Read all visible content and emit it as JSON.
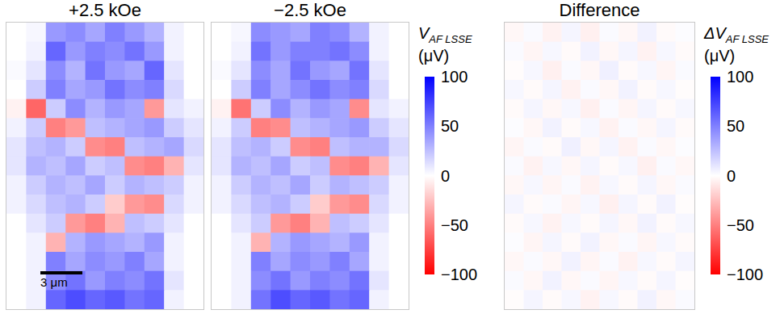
{
  "chart_data": [
    {
      "type": "heatmap",
      "title": "+2.5 kOe",
      "tick_labels": false,
      "annotation": "3 μm",
      "cells": [
        [
          0,
          3,
          40,
          45,
          35,
          50,
          40,
          30,
          5,
          0
        ],
        [
          0,
          5,
          60,
          40,
          50,
          45,
          55,
          40,
          5,
          0
        ],
        [
          2,
          10,
          45,
          30,
          55,
          40,
          35,
          60,
          10,
          0
        ],
        [
          0,
          20,
          50,
          35,
          40,
          55,
          45,
          50,
          15,
          0
        ],
        [
          -5,
          -60,
          20,
          45,
          30,
          40,
          35,
          -40,
          10,
          5
        ],
        [
          5,
          20,
          -50,
          -40,
          25,
          30,
          35,
          40,
          20,
          10
        ],
        [
          10,
          25,
          30,
          20,
          -45,
          -50,
          25,
          30,
          35,
          15
        ],
        [
          10,
          30,
          25,
          35,
          20,
          25,
          -45,
          -50,
          -30,
          10
        ],
        [
          5,
          20,
          30,
          25,
          35,
          20,
          30,
          25,
          20,
          5
        ],
        [
          5,
          15,
          25,
          30,
          20,
          -20,
          -40,
          -45,
          15,
          5
        ],
        [
          0,
          10,
          20,
          -40,
          -50,
          -30,
          25,
          20,
          10,
          0
        ],
        [
          0,
          5,
          -30,
          30,
          40,
          35,
          30,
          40,
          5,
          0
        ],
        [
          0,
          5,
          50,
          35,
          45,
          40,
          50,
          35,
          5,
          0
        ],
        [
          0,
          5,
          45,
          55,
          40,
          50,
          45,
          55,
          10,
          0
        ],
        [
          0,
          5,
          60,
          70,
          60,
          65,
          55,
          60,
          5,
          0
        ]
      ]
    },
    {
      "type": "heatmap",
      "title": "−2.5 kOe",
      "tick_labels": false,
      "cells": [
        [
          0,
          3,
          45,
          40,
          35,
          50,
          45,
          30,
          5,
          0
        ],
        [
          0,
          5,
          55,
          40,
          50,
          50,
          55,
          45,
          5,
          0
        ],
        [
          2,
          10,
          45,
          35,
          55,
          40,
          35,
          55,
          10,
          0
        ],
        [
          0,
          20,
          50,
          35,
          45,
          55,
          45,
          50,
          15,
          0
        ],
        [
          -5,
          -55,
          20,
          45,
          30,
          40,
          35,
          -45,
          10,
          5
        ],
        [
          5,
          20,
          -50,
          -45,
          25,
          30,
          35,
          40,
          20,
          10
        ],
        [
          10,
          25,
          30,
          20,
          -45,
          -50,
          25,
          30,
          30,
          15
        ],
        [
          10,
          30,
          25,
          35,
          20,
          25,
          -45,
          -50,
          -30,
          10
        ],
        [
          5,
          20,
          30,
          25,
          35,
          20,
          30,
          25,
          20,
          5
        ],
        [
          5,
          15,
          25,
          30,
          20,
          -20,
          -40,
          -45,
          15,
          5
        ],
        [
          0,
          10,
          20,
          -40,
          -50,
          -30,
          25,
          20,
          10,
          0
        ],
        [
          0,
          5,
          -30,
          30,
          40,
          35,
          30,
          40,
          5,
          0
        ],
        [
          0,
          5,
          50,
          35,
          45,
          40,
          50,
          35,
          5,
          0
        ],
        [
          0,
          5,
          45,
          55,
          40,
          50,
          45,
          55,
          10,
          0
        ],
        [
          0,
          5,
          55,
          70,
          60,
          65,
          55,
          60,
          5,
          0
        ]
      ],
      "colorbar": {
        "label": "V",
        "label_subscript": "AF LSSE",
        "unit": "(μV)",
        "range": [
          -100,
          100
        ],
        "ticks": [
          100,
          50,
          0,
          {
            "value": -50,
            "label": "−50"
          },
          {
            "value": -100,
            "label": "−100"
          }
        ]
      }
    },
    {
      "type": "heatmap",
      "title": "Difference",
      "tick_labels": false,
      "cells": [
        [
          -3,
          2,
          -5,
          4,
          -6,
          2,
          -3,
          5,
          -2,
          1
        ],
        [
          2,
          -4,
          3,
          -2,
          5,
          -3,
          4,
          -5,
          3,
          -2
        ],
        [
          -1,
          3,
          -6,
          2,
          -3,
          6,
          -2,
          3,
          -4,
          2
        ],
        [
          3,
          -2,
          4,
          -5,
          2,
          -3,
          5,
          -2,
          3,
          -1
        ],
        [
          -2,
          4,
          -3,
          3,
          -6,
          2,
          -4,
          4,
          -2,
          3
        ],
        [
          1,
          -3,
          5,
          -2,
          3,
          -5,
          2,
          -3,
          4,
          -2
        ],
        [
          -4,
          2,
          -2,
          6,
          -3,
          4,
          -5,
          2,
          -3,
          1
        ],
        [
          2,
          -5,
          3,
          -3,
          4,
          -2,
          3,
          -6,
          2,
          -3
        ],
        [
          -3,
          3,
          -4,
          2,
          -5,
          3,
          -2,
          4,
          -3,
          2
        ],
        [
          4,
          -2,
          2,
          -4,
          3,
          -6,
          4,
          -2,
          5,
          -1
        ],
        [
          -2,
          3,
          -5,
          3,
          -2,
          4,
          -3,
          5,
          -2,
          3
        ],
        [
          1,
          -4,
          4,
          -2,
          5,
          -3,
          2,
          -4,
          3,
          -2
        ],
        [
          -3,
          2,
          -3,
          5,
          -4,
          2,
          -5,
          3,
          -2,
          4
        ],
        [
          2,
          -3,
          5,
          -3,
          2,
          -4,
          3,
          -2,
          4,
          -1
        ],
        [
          -1,
          4,
          -2,
          3,
          -5,
          3,
          -2,
          5,
          -3,
          2
        ]
      ],
      "colorbar": {
        "label": "ΔV",
        "label_subscript": "AF LSSE",
        "unit": "(μV)",
        "range": [
          -100,
          100
        ],
        "ticks": [
          100,
          50,
          0,
          {
            "value": -50,
            "label": "−50"
          },
          {
            "value": -100,
            "label": "−100"
          }
        ]
      }
    }
  ]
}
